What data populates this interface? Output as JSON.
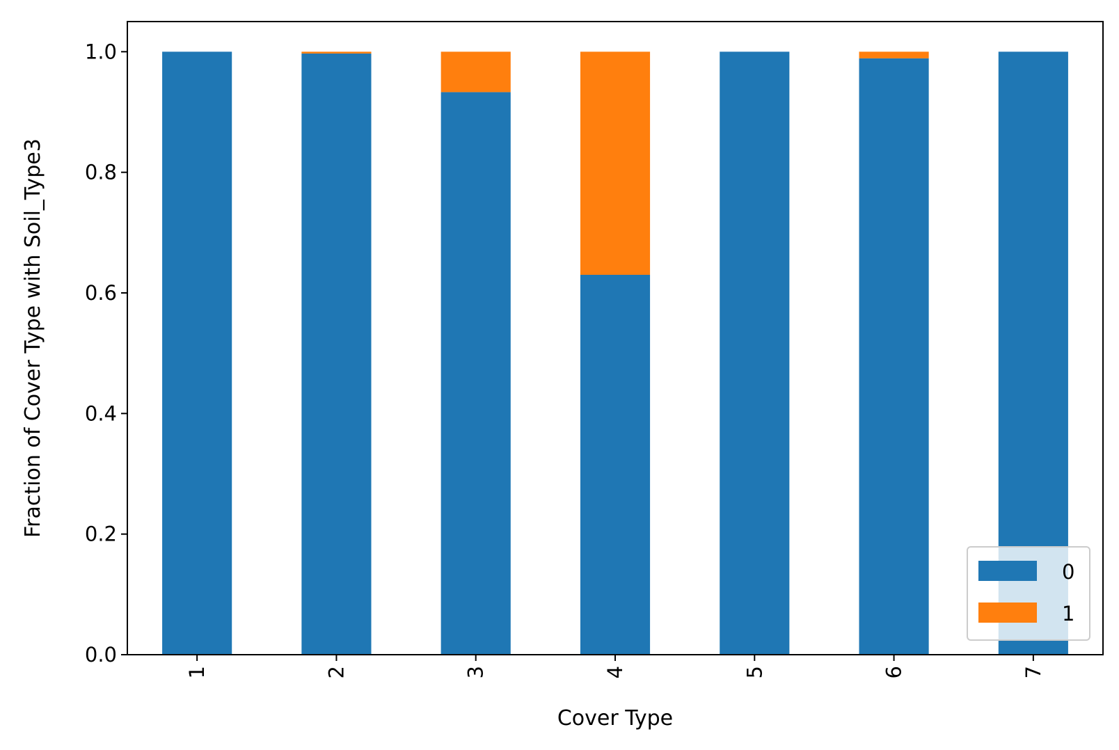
{
  "chart_data": {
    "type": "bar",
    "stacked": true,
    "xlabel": "Cover Type",
    "ylabel": "Fraction of Cover Type with Soil_Type3",
    "categories": [
      "1",
      "2",
      "3",
      "4",
      "5",
      "6",
      "7"
    ],
    "series": [
      {
        "name": "0",
        "color": "#1f77b4",
        "values": [
          1.0,
          0.997,
          0.933,
          0.63,
          1.0,
          0.989,
          1.0
        ]
      },
      {
        "name": "1",
        "color": "#ff7f0e",
        "values": [
          0.0,
          0.003,
          0.067,
          0.37,
          0.0,
          0.011,
          0.0
        ]
      }
    ],
    "ylim": [
      0,
      1.05
    ],
    "yticks": [
      0.0,
      0.2,
      0.4,
      0.6,
      0.8,
      1.0
    ],
    "ytick_labels": [
      "0.0",
      "0.2",
      "0.4",
      "0.6",
      "0.8",
      "1.0"
    ],
    "xtick_rotation": "vertical",
    "grid": false,
    "legend": {
      "location": "lower right"
    }
  }
}
